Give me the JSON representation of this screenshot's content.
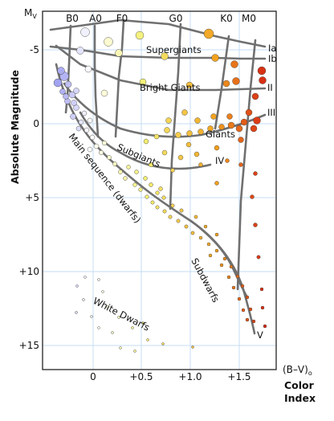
{
  "title": "",
  "y_axis": {
    "label": "Absolute Magnitude",
    "symbol": "M",
    "symbol_sub": "V",
    "ticks": [
      "-5",
      "0",
      "+5",
      "+10",
      "+15"
    ],
    "tick_values": [
      -5,
      0,
      5,
      10,
      15
    ]
  },
  "x_axis": {
    "label_top": "(B–V)",
    "label_top_sub": "o",
    "label_mid": "Color",
    "label_bottom": "Index",
    "ticks": [
      "0",
      "+0.5",
      "+1.0",
      "+1.5"
    ],
    "tick_values": [
      0,
      0.5,
      1.0,
      1.5
    ]
  },
  "spectral_classes": [
    "B0",
    "A0",
    "F0",
    "G0",
    "K0",
    "M0"
  ],
  "luminosity_classes": [
    "Ia",
    "Ib",
    "II",
    "III",
    "IV",
    "V"
  ],
  "regions": {
    "supergiants": "Supergiants",
    "bright_giants": "Bright Giants",
    "giants": "Giants",
    "subgiants": "Subgiants",
    "main_sequence": "Main sequence (dwarfs)",
    "subdwarfs": "Subdwarfs",
    "white_dwarfs": "White Dwarfs"
  },
  "colors": {
    "hot": "#9d9df0",
    "white": "#ffffff",
    "yellow": "#f3f074",
    "orange": "#f2a21f",
    "red": "#d62a14",
    "curve": "#707070",
    "grid": "#c6dcf4"
  }
}
